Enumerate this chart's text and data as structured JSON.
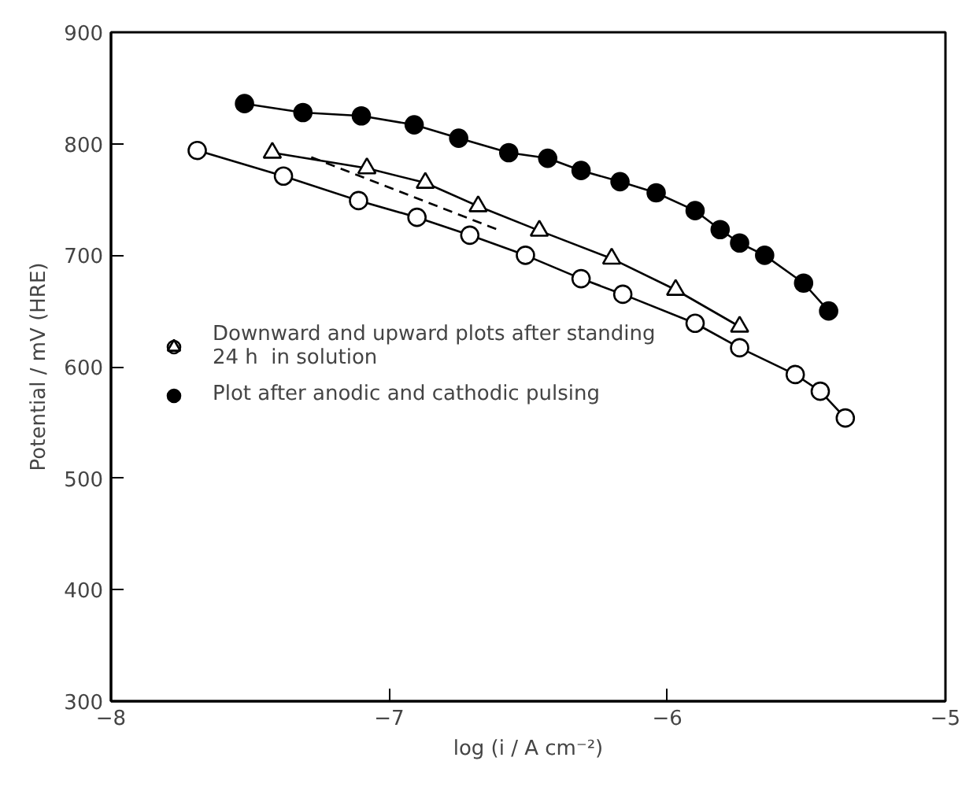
{
  "chart_data": {
    "type": "line",
    "xlabel": "log (i / A cm⁻²)",
    "ylabel": "Potential / mV (HRE)",
    "xlim": [
      -8,
      -5
    ],
    "ylim": [
      300,
      900
    ],
    "xticks": [
      -8,
      -7,
      -6,
      -5
    ],
    "yticks": [
      300,
      400,
      500,
      600,
      700,
      800,
      900
    ],
    "grid": false,
    "legend": "left",
    "line_style": "solid",
    "series": [
      {
        "name": "Downward and upward plots after standing\n24 h  in solution",
        "color": "#000000",
        "marker": "circle",
        "colors": [
          "#ffffff",
          "#ffffff",
          "#ffffff",
          "#ffffff",
          "#ffffff",
          "#ffffff",
          "#ffffff",
          "#ffffff",
          "#ffffff",
          "#ffffff",
          "#ffffff",
          "#ffffff",
          "#ffffff"
        ],
        "x": [
          -7.69,
          -7.38,
          -7.11,
          -6.9,
          -6.71,
          -6.51,
          -6.31,
          -6.16,
          -5.9,
          -5.74,
          -5.54,
          -5.45,
          -5.36
        ],
        "values": [
          794,
          771,
          749,
          734,
          718,
          700,
          679,
          665,
          639,
          617,
          593,
          578,
          554
        ]
      },
      {
        "color": "#000000",
        "marker": "triangle",
        "colors": [
          "#ffffff",
          "#ffffff",
          "#ffffff",
          "#ffffff",
          "#ffffff",
          "#ffffff",
          "#ffffff",
          "#ffffff"
        ],
        "x": [
          -7.42,
          -7.08,
          -6.87,
          -6.68,
          -6.46,
          -6.2,
          -5.97,
          -5.74
        ],
        "values": [
          792,
          778,
          765,
          744,
          722,
          697,
          669,
          636
        ]
      },
      {
        "name": "Plot after anodic and cathodic pulsing",
        "color": "#000000",
        "marker": "circle",
        "x": [
          -7.52,
          -7.31,
          -7.1,
          -6.91,
          -6.75,
          -6.57,
          -6.43,
          -6.31,
          -6.17,
          -6.04,
          -5.9,
          -5.81,
          -5.74,
          -5.65,
          -5.51,
          -5.42
        ],
        "values": [
          836,
          828,
          825,
          817,
          805,
          792,
          787,
          776,
          766,
          756,
          740,
          723,
          711,
          700,
          675,
          650
        ]
      },
      {
        "color": "#000000",
        "marker": "none",
        "line_style": "dashed",
        "x": [
          -7.28,
          -6.6
        ],
        "values": [
          788,
          722
        ]
      }
    ]
  }
}
